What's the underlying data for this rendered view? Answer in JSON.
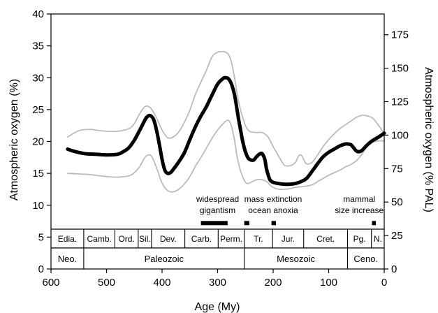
{
  "chart_data": {
    "type": "line",
    "xlabel": "Age (My)",
    "ylabel": "Atmospheric oxygen (%)",
    "y2label": "Atmospheric oxygen (% PAL)",
    "xlim": [
      600,
      0
    ],
    "ylim": [
      0,
      40
    ],
    "y2lim": [
      0,
      190.5
    ],
    "x_ticks": [
      600,
      500,
      400,
      300,
      200,
      100,
      0
    ],
    "y_ticks": [
      0,
      5,
      10,
      15,
      20,
      25,
      30,
      35,
      40
    ],
    "y2_ticks": [
      0,
      25,
      50,
      75,
      100,
      125,
      150,
      175
    ],
    "grid": false,
    "legend": "none",
    "series": [
      {
        "role": "central estimate",
        "color": "#000000",
        "x": [
          570,
          560,
          540,
          520,
          500,
          480,
          470,
          460,
          450,
          440,
          430,
          425,
          420,
          415,
          410,
          405,
          400,
          395,
          390,
          385,
          380,
          370,
          360,
          350,
          340,
          330,
          320,
          310,
          300,
          290,
          285,
          280,
          275,
          270,
          265,
          262,
          258,
          255,
          250,
          245,
          240,
          235,
          230,
          225,
          220,
          215,
          212,
          208,
          205,
          200,
          190,
          180,
          170,
          160,
          150,
          140,
          130,
          120,
          110,
          100,
          90,
          80,
          70,
          65,
          60,
          55,
          50,
          45,
          40,
          30,
          20,
          10,
          0
        ],
        "y": [
          18.8,
          18.5,
          18.1,
          18.0,
          17.9,
          18.0,
          18.4,
          19.0,
          20.2,
          21.8,
          23.5,
          24.0,
          24.0,
          23.4,
          21.8,
          19.6,
          17.2,
          15.5,
          15.0,
          15.1,
          15.6,
          16.8,
          18.2,
          20.3,
          22.3,
          24.0,
          25.5,
          27.3,
          29.0,
          29.9,
          30.0,
          29.8,
          29.0,
          27.5,
          25.0,
          23.4,
          21.5,
          20.1,
          18.4,
          17.4,
          17.1,
          17.1,
          17.6,
          18.0,
          18.1,
          17.2,
          15.7,
          14.5,
          13.9,
          13.6,
          13.4,
          13.3,
          13.3,
          13.4,
          13.7,
          14.2,
          15.3,
          16.5,
          17.6,
          18.3,
          18.8,
          19.3,
          19.6,
          19.6,
          19.5,
          19.0,
          18.5,
          18.4,
          18.6,
          19.5,
          20.2,
          20.7,
          21.3
        ]
      },
      {
        "role": "upper bound",
        "color": "#bbbbbb",
        "x": [
          570,
          550,
          530,
          520,
          500,
          480,
          460,
          450,
          440,
          430,
          420,
          410,
          400,
          390,
          380,
          370,
          360,
          350,
          340,
          330,
          320,
          310,
          300,
          290,
          285,
          280,
          275,
          270,
          265,
          260,
          255,
          250,
          245,
          240,
          230,
          220,
          210,
          205,
          200,
          190,
          180,
          170,
          160,
          155,
          150,
          145,
          140,
          130,
          120,
          110,
          100,
          90,
          80,
          70,
          60,
          50,
          40,
          30,
          20,
          10,
          0
        ],
        "y": [
          20.7,
          21.7,
          21.9,
          21.8,
          21.6,
          21.6,
          22.0,
          22.8,
          24.4,
          25.5,
          25.2,
          23.7,
          21.8,
          20.6,
          20.7,
          21.5,
          23.0,
          24.9,
          27.4,
          29.3,
          31.2,
          33.3,
          34.0,
          34.1,
          34.0,
          33.6,
          32.4,
          30.2,
          27.6,
          25.4,
          23.8,
          22.5,
          21.8,
          21.5,
          21.4,
          21.4,
          20.8,
          20.1,
          19.2,
          17.7,
          16.3,
          16.2,
          16.7,
          17.6,
          17.9,
          17.2,
          16.5,
          16.7,
          17.9,
          19.2,
          20.3,
          21.2,
          22.0,
          22.6,
          23.2,
          23.8,
          24.1,
          24.0,
          23.6,
          22.5,
          21.3
        ]
      },
      {
        "role": "lower bound",
        "color": "#bbbbbb",
        "x": [
          570,
          550,
          530,
          520,
          500,
          480,
          460,
          450,
          440,
          430,
          420,
          410,
          400,
          390,
          380,
          370,
          360,
          350,
          340,
          330,
          320,
          310,
          300,
          290,
          285,
          280,
          275,
          270,
          265,
          260,
          255,
          250,
          245,
          240,
          235,
          230,
          220,
          210,
          205,
          200,
          190,
          180,
          170,
          160,
          150,
          140,
          130,
          120,
          110,
          100,
          90,
          80,
          70,
          60,
          50,
          40,
          30,
          20,
          10,
          0
        ],
        "y": [
          15.0,
          14.9,
          14.8,
          14.7,
          14.5,
          14.4,
          14.6,
          15.1,
          16.1,
          17.6,
          17.8,
          15.9,
          13.5,
          12.3,
          12.1,
          12.5,
          13.3,
          14.5,
          16.1,
          17.5,
          19.0,
          20.5,
          21.8,
          22.8,
          23.2,
          23.3,
          22.4,
          20.4,
          17.7,
          15.8,
          14.5,
          13.6,
          13.4,
          13.6,
          13.8,
          14.0,
          14.0,
          13.6,
          13.1,
          12.8,
          12.5,
          12.5,
          12.6,
          12.8,
          12.9,
          13.0,
          13.2,
          13.7,
          14.2,
          14.7,
          15.1,
          15.5,
          16.0,
          16.4,
          17.0,
          18.0,
          19.4,
          19.9,
          20.1,
          20.1
        ]
      }
    ],
    "annotations": [
      {
        "lines": [
          "widespread",
          "gigantism"
        ],
        "x": 300,
        "bar": [
          330,
          282
        ]
      },
      {
        "lines": [
          "mass extinction",
          "ocean anoxia"
        ],
        "x": 200,
        "bars": [
          [
            252,
            243
          ],
          [
            203,
            195
          ]
        ]
      },
      {
        "lines": [
          "mammal",
          "size increase"
        ],
        "x": 45,
        "bar": [
          22,
          15
        ]
      }
    ],
    "periods": [
      {
        "label": "Edia.",
        "from": 600,
        "to": 541
      },
      {
        "label": "Camb.",
        "from": 541,
        "to": 485
      },
      {
        "label": "Ord.",
        "from": 485,
        "to": 443
      },
      {
        "label": "Sil.",
        "from": 443,
        "to": 419
      },
      {
        "label": "Dev.",
        "from": 419,
        "to": 359
      },
      {
        "label": "Carb.",
        "from": 359,
        "to": 299
      },
      {
        "label": "Perm.",
        "from": 299,
        "to": 252
      },
      {
        "label": "Tr.",
        "from": 252,
        "to": 201
      },
      {
        "label": "Jur.",
        "from": 201,
        "to": 145
      },
      {
        "label": "Cret.",
        "from": 145,
        "to": 66
      },
      {
        "label": "Pg.",
        "from": 66,
        "to": 23
      },
      {
        "label": "N.",
        "from": 23,
        "to": 0
      }
    ],
    "eras": [
      {
        "label": "Neo.",
        "from": 600,
        "to": 541
      },
      {
        "label": "Paleozoic",
        "from": 541,
        "to": 252
      },
      {
        "label": "Mesozoic",
        "from": 252,
        "to": 66
      },
      {
        "label": "Ceno.",
        "from": 66,
        "to": 0
      }
    ]
  }
}
